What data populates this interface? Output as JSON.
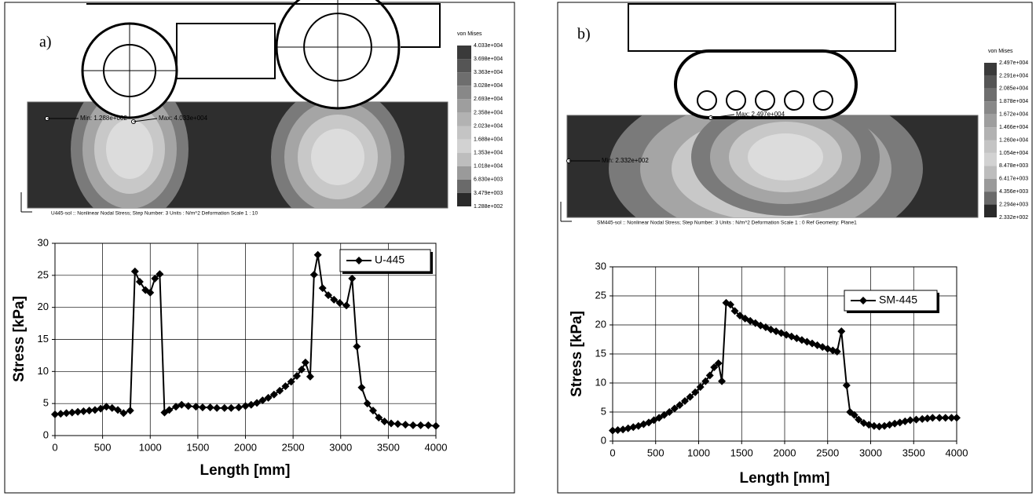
{
  "chart_data": [
    {
      "type": "line",
      "x_label": "Length [mm]",
      "y_label": "Stress [kPa]",
      "x": [
        0,
        60,
        120,
        180,
        240,
        300,
        360,
        420,
        480,
        540,
        600,
        660,
        720,
        790,
        840,
        890,
        950,
        1000,
        1050,
        1100,
        1150,
        1200,
        1270,
        1330,
        1400,
        1480,
        1550,
        1630,
        1700,
        1780,
        1850,
        1930,
        2000,
        2060,
        2120,
        2180,
        2240,
        2300,
        2360,
        2420,
        2480,
        2540,
        2590,
        2630,
        2680,
        2720,
        2760,
        2810,
        2870,
        2930,
        2990,
        3060,
        3120,
        3170,
        3220,
        3280,
        3340,
        3400,
        3460,
        3530,
        3600,
        3680,
        3760,
        3840,
        3920,
        4000
      ],
      "series": [
        {
          "name": "U-445",
          "color": "#000000",
          "values": [
            3.3,
            3.4,
            3.5,
            3.6,
            3.7,
            3.8,
            3.9,
            4.0,
            4.2,
            4.5,
            4.3,
            4.0,
            3.5,
            3.9,
            25.6,
            24.0,
            22.7,
            22.3,
            24.5,
            25.2,
            3.6,
            4.0,
            4.5,
            4.8,
            4.6,
            4.5,
            4.4,
            4.4,
            4.3,
            4.3,
            4.3,
            4.4,
            4.6,
            4.8,
            5.1,
            5.5,
            5.9,
            6.4,
            7.0,
            7.7,
            8.4,
            9.3,
            10.3,
            11.4,
            9.2,
            25.1,
            28.2,
            23.0,
            21.9,
            21.2,
            20.7,
            20.3,
            24.5,
            13.9,
            7.5,
            5.0,
            3.9,
            2.8,
            2.2,
            1.9,
            1.8,
            1.7,
            1.6,
            1.6,
            1.6,
            1.5
          ]
        }
      ],
      "xlim": [
        0,
        4000
      ],
      "ylim": [
        0,
        30
      ],
      "xticks": [
        0,
        500,
        1000,
        1500,
        2000,
        2500,
        3000,
        3500,
        4000
      ],
      "yticks": [
        0,
        5,
        10,
        15,
        20,
        25,
        30
      ],
      "grid": true,
      "legend": "upper right"
    },
    {
      "type": "line",
      "x_label": "Length [mm]",
      "y_label": "Stress [kPa]",
      "x": [
        0,
        60,
        120,
        180,
        240,
        300,
        360,
        420,
        480,
        540,
        600,
        660,
        720,
        780,
        840,
        900,
        960,
        1020,
        1080,
        1130,
        1180,
        1230,
        1270,
        1320,
        1370,
        1420,
        1480,
        1540,
        1600,
        1660,
        1720,
        1780,
        1840,
        1900,
        1960,
        2020,
        2080,
        2140,
        2200,
        2260,
        2320,
        2380,
        2440,
        2500,
        2560,
        2610,
        2660,
        2720,
        2760,
        2810,
        2860,
        2920,
        2980,
        3040,
        3100,
        3160,
        3220,
        3280,
        3340,
        3400,
        3460,
        3530,
        3600,
        3660,
        3720,
        3800,
        3870,
        3940,
        4000
      ],
      "series": [
        {
          "name": "SM-445",
          "color": "#000000",
          "values": [
            1.8,
            1.9,
            2.0,
            2.2,
            2.4,
            2.6,
            2.9,
            3.2,
            3.6,
            4.0,
            4.5,
            5.0,
            5.6,
            6.2,
            6.9,
            7.6,
            8.4,
            9.3,
            10.3,
            11.3,
            12.7,
            13.4,
            10.3,
            23.8,
            23.5,
            22.4,
            21.6,
            21.1,
            20.7,
            20.3,
            19.9,
            19.6,
            19.2,
            18.9,
            18.6,
            18.3,
            18.0,
            17.7,
            17.4,
            17.1,
            16.8,
            16.5,
            16.2,
            15.9,
            15.6,
            15.4,
            18.9,
            9.6,
            5.0,
            4.5,
            3.7,
            3.1,
            2.8,
            2.6,
            2.5,
            2.6,
            2.8,
            3.0,
            3.2,
            3.4,
            3.6,
            3.7,
            3.8,
            3.9,
            4.0,
            4.0,
            4.0,
            4.0,
            4.0
          ]
        }
      ],
      "xlim": [
        0,
        4000
      ],
      "ylim": [
        0,
        30
      ],
      "xticks": [
        0,
        500,
        1000,
        1500,
        2000,
        2500,
        3000,
        3500,
        4000
      ],
      "yticks": [
        0,
        5,
        10,
        15,
        20,
        25,
        30
      ],
      "grid": true,
      "legend": "upper right"
    }
  ],
  "panels": [
    {
      "label": "a)",
      "fea": {
        "title": "von Mises",
        "scale": [
          "4.033e+004",
          "3.698e+004",
          "3.363e+004",
          "3.028e+004",
          "2.693e+004",
          "2.358e+004",
          "2.023e+004",
          "1.688e+004",
          "1.353e+004",
          "1.018e+004",
          "6.830e+003",
          "3.479e+003",
          "1.288e+002"
        ],
        "min": "Min: 1.288e+002",
        "max": "Max: 4.033e+004",
        "caption": "U445-sol :: Nonlinear Nodal Stress; Step Number: 3  Units : N/m^2  Deformation Scale  1 : 10"
      }
    },
    {
      "label": "b)",
      "fea": {
        "title": "von Mises",
        "scale": [
          "2.497e+004",
          "2.291e+004",
          "2.085e+004",
          "1.878e+004",
          "1.672e+004",
          "1.466e+004",
          "1.260e+004",
          "1.054e+004",
          "8.478e+003",
          "6.417e+003",
          "4.356e+003",
          "2.294e+003",
          "2.332e+002"
        ],
        "min": "Min: 2.332e+002",
        "max": "Max: 2.497e+004",
        "caption": "SM445-sol :: Nonlinear Nodal Stress; Step Number: 3  Units : N/m^2  Deformation Scale  1 : 0 Ref Geometry: Plane1"
      }
    }
  ]
}
